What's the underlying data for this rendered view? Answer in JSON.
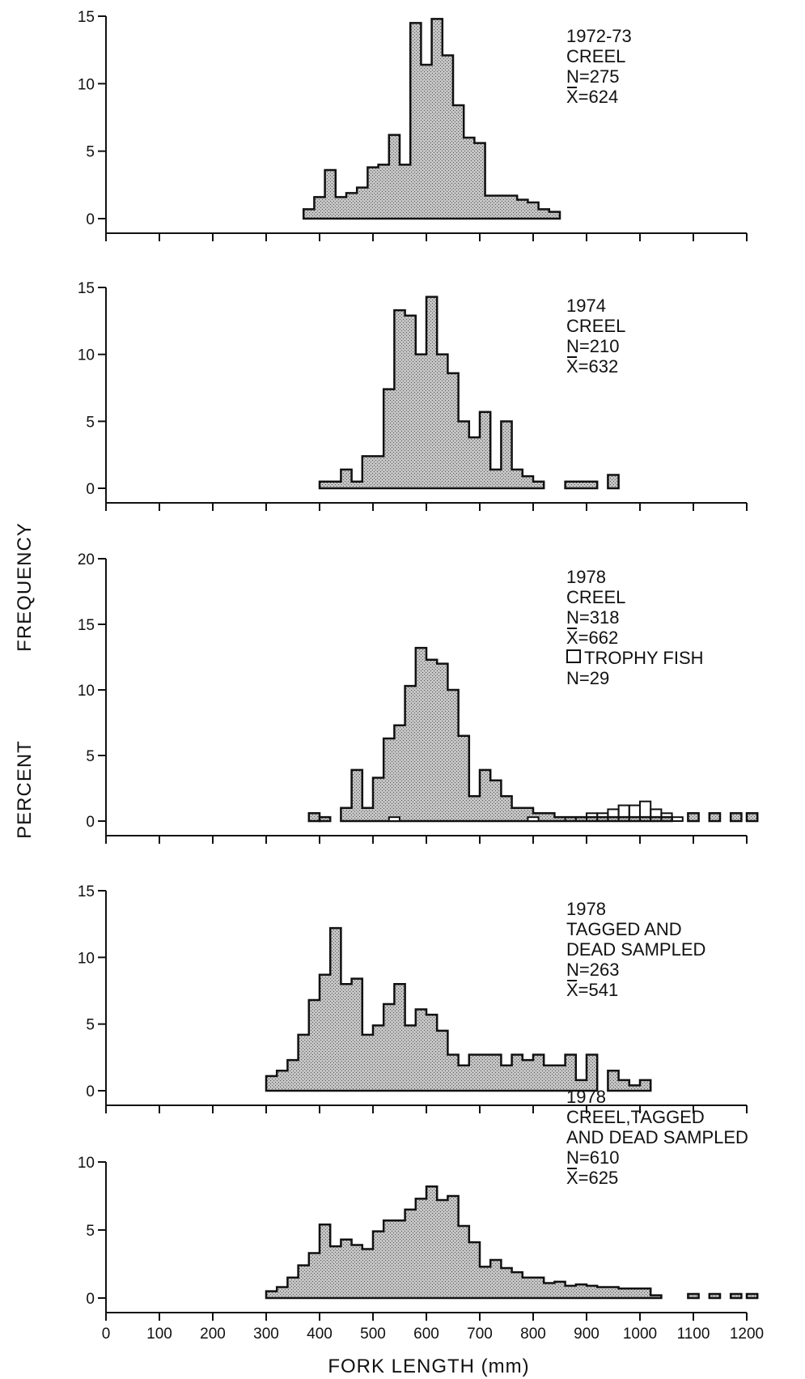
{
  "figure": {
    "ylabel_top": "FREQUENCY",
    "ylabel_bottom": "PERCENT",
    "xlabel": "FORK LENGTH (mm)"
  },
  "chart_data": [
    {
      "type": "bar",
      "label_lines": [
        "1972-73",
        "CREEL",
        "N=275",
        "X=624"
      ],
      "ylim": [
        0,
        15
      ],
      "yticks": [
        0,
        5,
        10,
        15
      ],
      "bin_width": 20,
      "bin_start": 370,
      "values": [
        0.7,
        1.6,
        3.6,
        1.6,
        1.9,
        2.3,
        3.8,
        4.0,
        6.2,
        4.0,
        14.5,
        11.4,
        14.8,
        12.1,
        8.4,
        6.0,
        5.6,
        1.7,
        1.7,
        1.7,
        1.4,
        1.2,
        0.7,
        0.5
      ]
    },
    {
      "type": "bar",
      "label_lines": [
        "1974",
        "CREEL",
        "N=210",
        "X=632"
      ],
      "ylim": [
        0,
        15
      ],
      "yticks": [
        0,
        5,
        10,
        15
      ],
      "bin_width": 20,
      "bin_start": 400,
      "values": [
        0.5,
        0.5,
        1.4,
        0.5,
        2.4,
        2.4,
        7.4,
        13.3,
        12.9,
        10.0,
        14.3,
        10.0,
        8.6,
        5.0,
        3.8,
        5.7,
        1.4,
        5.0,
        1.4,
        0.9,
        0.5
      ],
      "outlier_bins": [
        {
          "start": 860,
          "end": 920,
          "value": 0.5
        },
        {
          "start": 940,
          "end": 960,
          "value": 1.0
        }
      ]
    },
    {
      "type": "bar",
      "label_lines": [
        "1978",
        "CREEL",
        "N=318",
        "X=662"
      ],
      "legend_text": "TROPHY FISH",
      "legend_n": "N=29",
      "ylim": [
        0,
        20
      ],
      "yticks": [
        0,
        5,
        10,
        15,
        20
      ],
      "bin_width": 20,
      "bin_start": 440,
      "values": [
        1.0,
        3.9,
        1.0,
        3.3,
        6.3,
        7.3,
        10.3,
        13.2,
        12.3,
        12.0,
        10.0,
        6.5,
        1.9,
        3.9,
        3.1,
        1.9,
        1.0,
        1.0,
        0.6,
        0.6,
        0.3,
        0.3,
        0.3,
        0.3,
        0.3,
        0.3,
        0.3,
        0.3,
        0.3,
        0.3,
        0.3
      ],
      "extra_bins": [
        {
          "start": 380,
          "end": 400,
          "value": 0.6
        },
        {
          "start": 400,
          "end": 420,
          "value": 0.3
        }
      ],
      "trophy_bins": [
        {
          "start": 860,
          "end": 880,
          "value": 0.3
        },
        {
          "start": 880,
          "end": 900,
          "value": 0.3
        },
        {
          "start": 900,
          "end": 920,
          "value": 0.6
        },
        {
          "start": 920,
          "end": 940,
          "value": 0.6
        },
        {
          "start": 940,
          "end": 960,
          "value": 0.9
        },
        {
          "start": 960,
          "end": 980,
          "value": 1.2
        },
        {
          "start": 980,
          "end": 1000,
          "value": 1.2
        },
        {
          "start": 1000,
          "end": 1020,
          "value": 1.5
        },
        {
          "start": 1020,
          "end": 1040,
          "value": 0.9
        },
        {
          "start": 1040,
          "end": 1060,
          "value": 0.6
        },
        {
          "start": 1060,
          "end": 1080,
          "value": 0.3
        }
      ],
      "trophy_scatter": [
        {
          "start": 530,
          "end": 550,
          "value": 0.3
        },
        {
          "start": 790,
          "end": 810,
          "value": 0.3
        }
      ],
      "outlier_bins": [
        {
          "start": 1090,
          "end": 1110,
          "value": 0.6
        },
        {
          "start": 1130,
          "end": 1150,
          "value": 0.6
        },
        {
          "start": 1170,
          "end": 1190,
          "value": 0.6
        },
        {
          "start": 1200,
          "end": 1220,
          "value": 0.6
        }
      ]
    },
    {
      "type": "bar",
      "label_lines": [
        "1978",
        "TAGGED AND",
        "DEAD SAMPLED",
        "N=263",
        "X=541"
      ],
      "ylim": [
        0,
        15
      ],
      "yticks": [
        0,
        5,
        10,
        15
      ],
      "bin_width": 20,
      "bin_start": 300,
      "values": [
        1.1,
        1.5,
        2.3,
        4.2,
        6.8,
        8.7,
        12.2,
        8.0,
        8.4,
        4.2,
        4.9,
        6.5,
        8.0,
        4.9,
        6.1,
        5.7,
        4.5,
        2.7,
        1.9,
        2.7,
        2.7,
        2.7,
        1.9,
        2.7,
        2.3,
        2.7,
        1.9,
        1.9,
        2.7,
        0.8,
        2.7,
        0.0,
        1.5,
        0.8,
        0.4,
        0.8
      ]
    },
    {
      "type": "bar",
      "label_lines": [
        "1978",
        "CREEL,TAGGED",
        "AND DEAD SAMPLED",
        "N=610",
        "X=625"
      ],
      "ylim": [
        0,
        10
      ],
      "yticks": [
        0,
        5,
        10
      ],
      "bin_width": 20,
      "bin_start": 300,
      "values": [
        0.5,
        0.8,
        1.5,
        2.4,
        3.3,
        5.4,
        3.8,
        4.3,
        3.9,
        3.6,
        4.9,
        5.7,
        5.7,
        6.5,
        7.3,
        8.2,
        7.2,
        7.5,
        5.3,
        4.1,
        2.3,
        2.8,
        2.2,
        1.9,
        1.5,
        1.5,
        1.1,
        1.2,
        0.9,
        1.0,
        0.9,
        0.8,
        0.8,
        0.7,
        0.7,
        0.7,
        0.2
      ],
      "outlier_bins": [
        {
          "start": 1090,
          "end": 1110,
          "value": 0.3
        },
        {
          "start": 1130,
          "end": 1150,
          "value": 0.3
        },
        {
          "start": 1170,
          "end": 1190,
          "value": 0.3
        },
        {
          "start": 1200,
          "end": 1220,
          "value": 0.3
        }
      ]
    }
  ],
  "x_axis": {
    "min": 0,
    "max": 1200,
    "tick_labels": [
      "0",
      "100",
      "200",
      "300",
      "400",
      "500",
      "600",
      "700",
      "800",
      "900",
      "1000",
      "1100",
      "1200"
    ]
  },
  "colors": {
    "bar_fill": "#b9b9b9",
    "outline": "#111111",
    "trophy_fill": "#ffffff"
  }
}
